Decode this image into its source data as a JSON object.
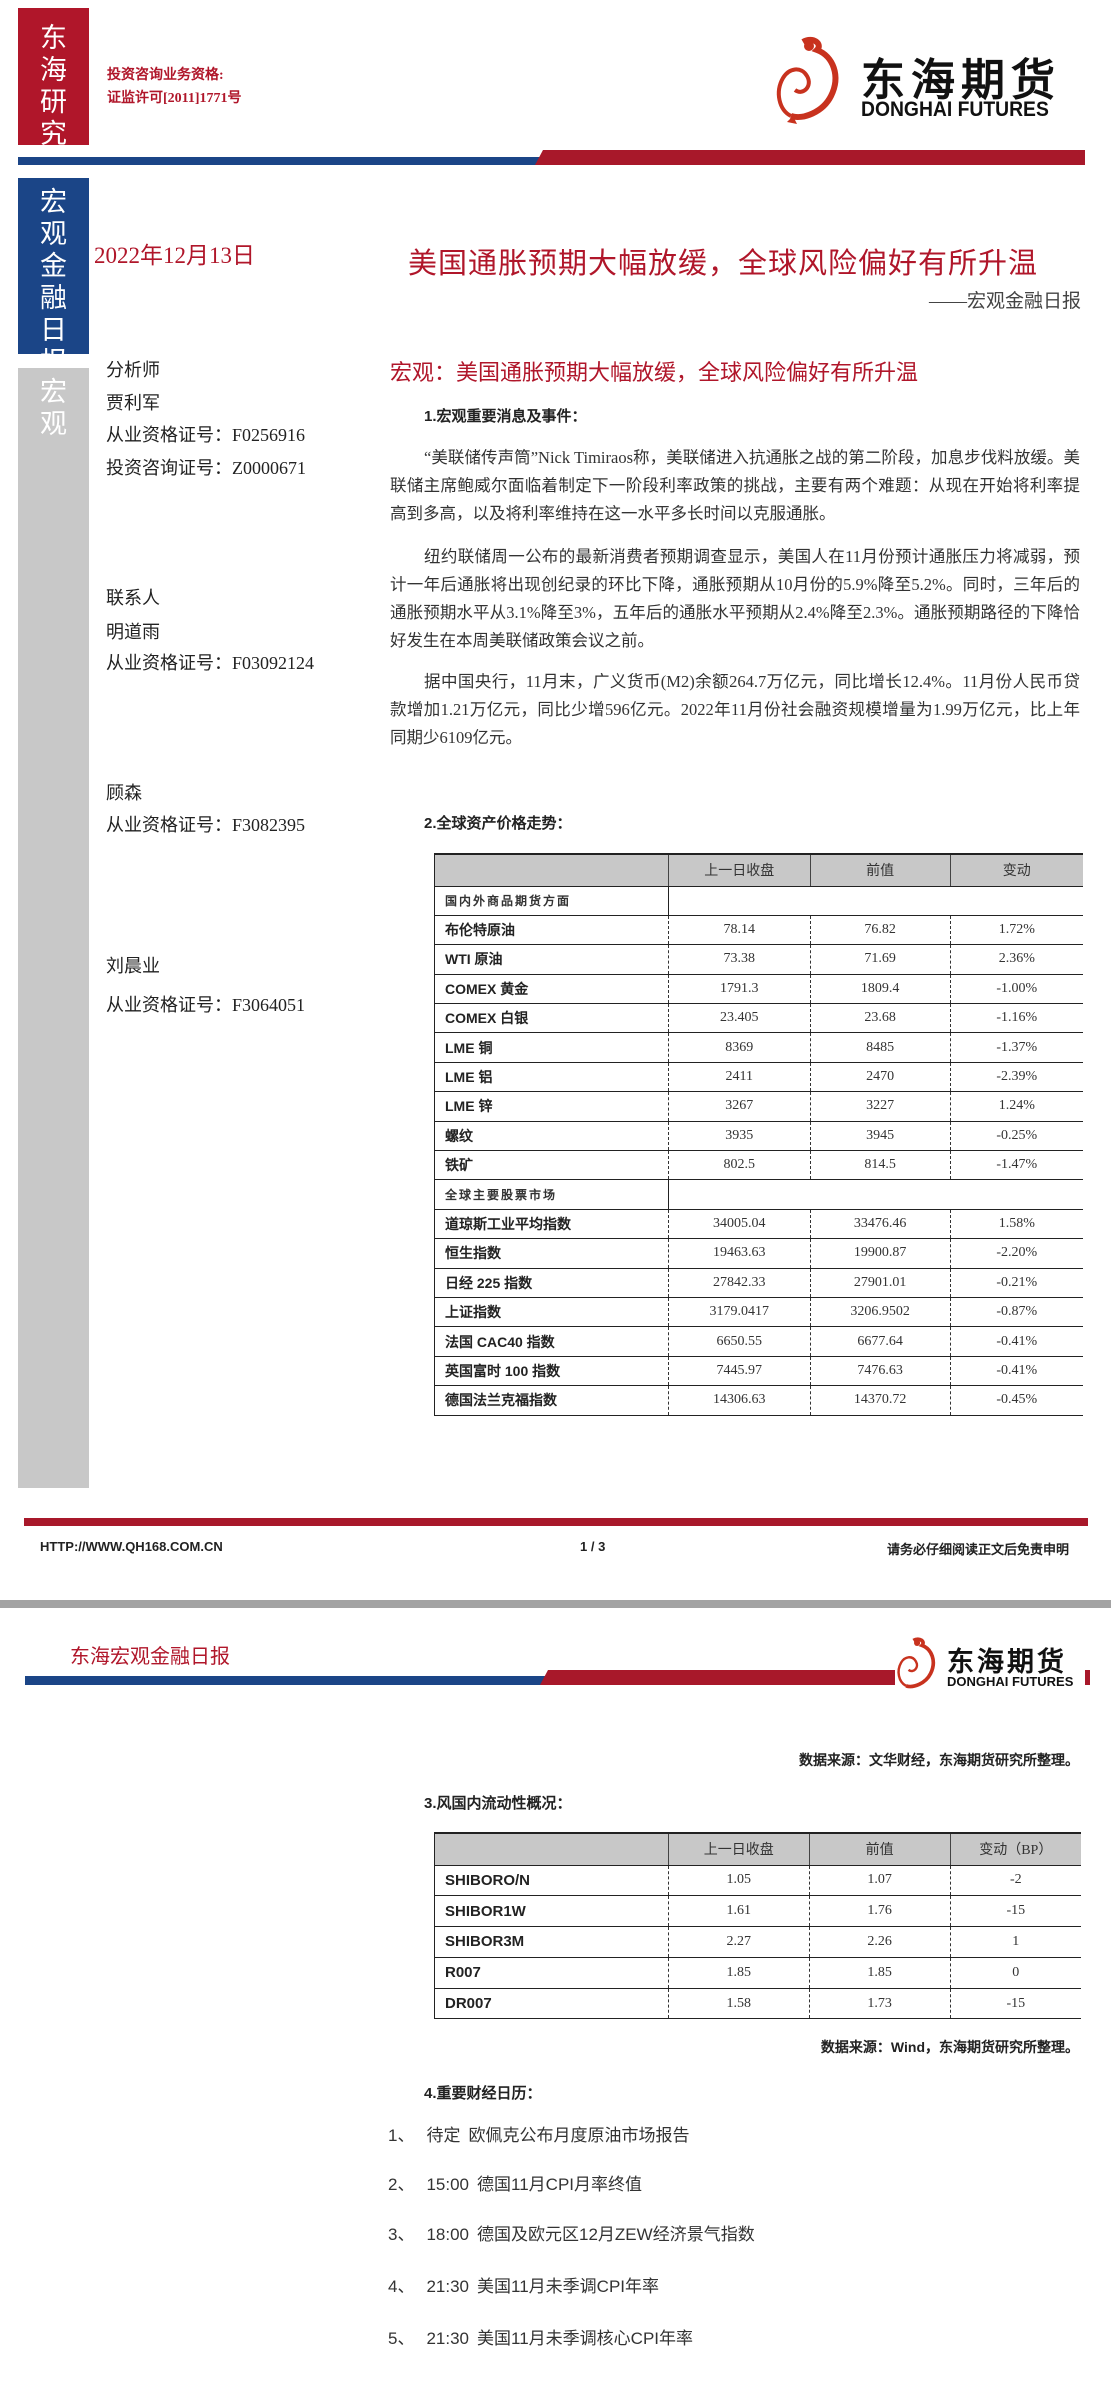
{
  "colors": {
    "brand_red": "#b0162a",
    "brand_blue": "#1b4587",
    "side_gray": "#c8c8c8"
  },
  "page1": {
    "side_top": "东海研究",
    "side_mid": "宏观金融日报",
    "side_low": "宏观",
    "license": [
      "投资咨询业务资格:",
      "证监许可[2011]1771号"
    ],
    "logo": {
      "cn": "东海期货",
      "en": "DONGHAI FUTURES",
      "icon": "dragon-logo-icon"
    },
    "date": "2022年12月13日",
    "title": "美国通胀预期大幅放缓，全球风险偏好有所升温",
    "subtitle": "——宏观金融日报",
    "analyst_label": "分析师",
    "analysts": [
      {
        "name": "贾利军",
        "ids": [
          "从业资格证号：F0256916",
          "投资咨询证号：Z0000671"
        ]
      }
    ],
    "contact_label": "联系人",
    "contacts": [
      {
        "name": "明道雨",
        "id": "从业资格证号：F03092124"
      },
      {
        "name": "顾森",
        "id": "从业资格证号：F3082395"
      },
      {
        "name": "刘晨业",
        "id": "从业资格证号：F3064051"
      }
    ],
    "headline": "宏观：美国通胀预期大幅放缓，全球风险偏好有所升温",
    "sec1": "1.宏观重要消息及事件：",
    "paras": [
      "“美联储传声筒”Nick Timiraos称，美联储进入抗通胀之战的第二阶段，加息步伐料放缓。美联储主席鲍威尔面临着制定下一阶段利率政策的挑战，主要有两个难题：从现在开始将利率提高到多高，以及将利率维持在这一水平多长时间以克服通胀。",
      "纽约联储周一公布的最新消费者预期调查显示，美国人在11月份预计通胀压力将减弱，预计一年后通胀将出现创纪录的环比下降，通胀预期从10月份的5.9%降至5.2%。同时，三年后的通胀预期水平从3.1%降至3%，五年后的通胀水平预期从2.4%降至2.3%。通胀预期路径的下降恰好发生在本周美联储政策会议之前。",
      "据中国央行，11月末，广义货币(M2)余额264.7万亿元，同比增长12.4%。11月份人民币贷款增加1.21万亿元，同比少增596亿元。2022年11月份社会融资规模增量为1.99万亿元，比上年同期少6109亿元。"
    ],
    "sec2": "2.全球资产价格走势：",
    "table": {
      "headers": [
        "",
        "上一日收盘",
        "前值",
        "变动"
      ],
      "sections": [
        {
          "title": "国内外商品期货方面",
          "rows": [
            [
              "布伦特原油",
              "78.14",
              "76.82",
              "1.72%"
            ],
            [
              "WTI 原油",
              "73.38",
              "71.69",
              "2.36%"
            ],
            [
              "COMEX 黄金",
              "1791.3",
              "1809.4",
              "-1.00%"
            ],
            [
              "COMEX 白银",
              "23.405",
              "23.68",
              "-1.16%"
            ],
            [
              "LME 铜",
              "8369",
              "8485",
              "-1.37%"
            ],
            [
              "LME 铝",
              "2411",
              "2470",
              "-2.39%"
            ],
            [
              "LME 锌",
              "3267",
              "3227",
              "1.24%"
            ],
            [
              "螺纹",
              "3935",
              "3945",
              "-0.25%"
            ],
            [
              "铁矿",
              "802.5",
              "814.5",
              "-1.47%"
            ]
          ]
        },
        {
          "title": "全球主要股票市场",
          "rows": [
            [
              "道琼斯工业平均指数",
              "34005.04",
              "33476.46",
              "1.58%"
            ],
            [
              "恒生指数",
              "19463.63",
              "19900.87",
              "-2.20%"
            ],
            [
              "日经 225 指数",
              "27842.33",
              "27901.01",
              "-0.21%"
            ],
            [
              "上证指数",
              "3179.0417",
              "3206.9502",
              "-0.87%"
            ],
            [
              "法国 CAC40 指数",
              "6650.55",
              "6677.64",
              "-0.41%"
            ],
            [
              "英国富时 100 指数",
              "7445.97",
              "7476.63",
              "-0.41%"
            ],
            [
              "德国法兰克福指数",
              "14306.63",
              "14370.72",
              "-0.45%"
            ]
          ]
        }
      ]
    },
    "footer": {
      "url": "HTTP://WWW.QH168.COM.CN",
      "page": "1 / 3",
      "disclaimer": "请务必仔细阅读正文后免责申明"
    }
  },
  "page2": {
    "header": "东海宏观金融日报",
    "source1": "数据来源：文华财经，东海期货研究所整理。",
    "sec3": "3.风国内流动性概况：",
    "table": {
      "headers": [
        "",
        "上一日收盘",
        "前值",
        "变动（BP）"
      ],
      "rows": [
        [
          "SHIBORO/N",
          "1.05",
          "1.07",
          "-2"
        ],
        [
          "SHIBOR1W",
          "1.61",
          "1.76",
          "-15"
        ],
        [
          "SHIBOR3M",
          "2.27",
          "2.26",
          "1"
        ],
        [
          "R007",
          "1.85",
          "1.85",
          "0"
        ],
        [
          "DR007",
          "1.58",
          "1.73",
          "-15"
        ]
      ]
    },
    "source2": "数据来源：Wind，东海期货研究所整理。",
    "sec4": "4.重要财经日历：",
    "calendar": [
      {
        "no": "1、",
        "time": "待定",
        "event": "欧佩克公布月度原油市场报告"
      },
      {
        "no": "2、",
        "time": "15:00",
        "event": "德国11月CPI月率终值"
      },
      {
        "no": "3、",
        "time": "18:00",
        "event": "德国及欧元区12月ZEW经济景气指数"
      },
      {
        "no": "4、",
        "time": "21:30",
        "event": "美国11月未季调CPI年率"
      },
      {
        "no": "5、",
        "time": "21:30",
        "event": "美国11月未季调核心CPI年率"
      }
    ]
  }
}
